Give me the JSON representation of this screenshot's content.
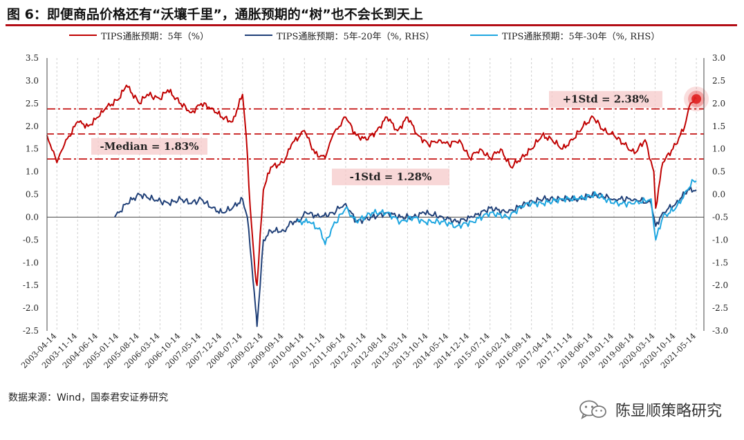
{
  "title": "图 6：即便商品价格还有“沃壤千里”，通胀预期的“树”也不会长到天上",
  "source": "数据来源：Wind，国泰君安证券研究",
  "watermark": {
    "text": "陈显顺策略研究",
    "icon": "wechat-icon"
  },
  "colors": {
    "series_5y": "#c00000",
    "series_5y20y": "#1f3f77",
    "series_5y30y": "#1ea6e0",
    "accent_title_rule": "#b30d16",
    "band_fill": "#f6c9c9",
    "highlight_dot": "#e02020"
  },
  "chart_data": {
    "type": "line",
    "series": [
      {
        "name": "TIPS通胀预期：5年（%）",
        "axis": "left",
        "x": [
          "2003-01-02",
          "2003-04-14",
          "2003-07-01",
          "2003-11-14",
          "2004-03-01",
          "2004-06-14",
          "2004-09-01",
          "2005-01-14",
          "2005-04-01",
          "2005-08-14",
          "2005-11-01",
          "2006-03-14",
          "2006-06-01",
          "2006-10-14",
          "2007-02-01",
          "2007-05-14",
          "2007-09-01",
          "2007-12-14",
          "2008-04-01",
          "2008-07-14",
          "2008-08-20",
          "2008-10-01",
          "2008-11-20",
          "2008-12-10",
          "2009-02-14",
          "2009-05-01",
          "2009-09-14",
          "2009-12-01",
          "2010-04-14",
          "2010-08-01",
          "2010-11-14",
          "2011-02-01",
          "2011-06-14",
          "2011-10-01",
          "2012-01-14",
          "2012-05-01",
          "2012-08-14",
          "2012-12-01",
          "2013-03-14",
          "2013-07-01",
          "2013-10-14",
          "2014-02-01",
          "2014-05-14",
          "2014-09-01",
          "2014-12-14",
          "2015-04-01",
          "2015-07-14",
          "2015-11-01",
          "2016-02-14",
          "2016-06-01",
          "2016-09-14",
          "2017-01-01",
          "2017-04-14",
          "2017-08-01",
          "2017-11-14",
          "2018-03-01",
          "2018-06-14",
          "2018-10-01",
          "2019-01-14",
          "2019-05-01",
          "2019-08-14",
          "2019-12-01",
          "2020-03-01",
          "2020-03-20",
          "2020-06-01",
          "2020-10-14",
          "2021-01-14",
          "2021-03-14",
          "2021-05-14"
        ],
        "y": [
          1.8,
          1.2,
          1.6,
          2.1,
          2.0,
          2.2,
          2.4,
          2.6,
          2.9,
          2.5,
          2.7,
          2.6,
          2.8,
          2.5,
          2.3,
          2.5,
          2.4,
          2.2,
          2.1,
          2.7,
          1.8,
          0.2,
          -1.2,
          -1.5,
          0.6,
          1.1,
          1.2,
          1.6,
          1.9,
          1.4,
          1.3,
          1.8,
          2.2,
          1.8,
          1.7,
          1.9,
          2.2,
          1.9,
          2.2,
          1.8,
          1.6,
          1.7,
          1.6,
          1.7,
          1.3,
          1.5,
          1.3,
          1.5,
          1.1,
          1.3,
          1.5,
          1.8,
          1.7,
          1.5,
          1.7,
          2.0,
          2.2,
          1.9,
          1.8,
          1.6,
          1.4,
          1.7,
          1.0,
          0.2,
          1.2,
          1.6,
          2.0,
          2.5,
          2.6
        ]
      },
      {
        "name": "TIPS通胀预期：5年-20年（%, RHS）",
        "axis": "right",
        "x": [
          "2004-12-01",
          "2005-01-14",
          "2005-04-01",
          "2005-08-14",
          "2006-01-01",
          "2006-06-14",
          "2006-10-14",
          "2007-02-01",
          "2007-05-14",
          "2007-09-01",
          "2007-12-14",
          "2008-04-01",
          "2008-07-14",
          "2008-09-01",
          "2008-10-15",
          "2008-11-25",
          "2008-12-10",
          "2009-02-14",
          "2009-05-01",
          "2009-09-14",
          "2009-12-01",
          "2010-02-14",
          "2010-05-01",
          "2010-10-01",
          "2011-02-01",
          "2011-06-14",
          "2011-10-01",
          "2012-03-14",
          "2012-08-14",
          "2013-01-01",
          "2013-05-14",
          "2013-09-01",
          "2014-03-14",
          "2014-08-01",
          "2015-01-14",
          "2015-07-14",
          "2016-01-14",
          "2016-07-14",
          "2017-01-14",
          "2017-07-14",
          "2018-01-14",
          "2018-07-14",
          "2019-01-14",
          "2019-08-14",
          "2020-02-01",
          "2020-03-20",
          "2020-06-01",
          "2020-10-14",
          "2021-02-14",
          "2021-05-14"
        ],
        "y": [
          -0.5,
          -0.4,
          -0.2,
          0.0,
          -0.1,
          -0.2,
          -0.1,
          -0.2,
          -0.1,
          -0.3,
          -0.4,
          -0.3,
          -0.1,
          -0.5,
          -1.5,
          -2.5,
          -2.9,
          -1.0,
          -0.8,
          -0.8,
          -0.6,
          -0.6,
          -0.4,
          -0.5,
          -0.4,
          -0.2,
          -0.6,
          -0.5,
          -0.4,
          -0.5,
          -0.5,
          -0.4,
          -0.5,
          -0.6,
          -0.5,
          -0.3,
          -0.4,
          -0.2,
          -0.1,
          -0.1,
          -0.1,
          0.0,
          -0.1,
          -0.1,
          -0.2,
          -0.7,
          -0.4,
          -0.2,
          0.1,
          0.1
        ]
      },
      {
        "name": "TIPS通胀预期：5年-30年（%, RHS）",
        "axis": "right",
        "x": [
          "2010-02-01",
          "2010-06-01",
          "2010-10-01",
          "2010-11-14",
          "2011-02-01",
          "2011-06-14",
          "2011-10-01",
          "2012-03-14",
          "2012-08-14",
          "2013-01-01",
          "2013-05-14",
          "2013-09-01",
          "2014-03-14",
          "2014-08-01",
          "2015-01-14",
          "2015-07-14",
          "2016-01-14",
          "2016-07-14",
          "2017-01-14",
          "2017-07-14",
          "2018-01-14",
          "2018-07-14",
          "2019-01-14",
          "2019-08-14",
          "2020-02-01",
          "2020-03-20",
          "2020-06-01",
          "2020-10-14",
          "2021-02-14",
          "2021-04-14",
          "2021-05-14"
        ],
        "y": [
          -0.6,
          -0.6,
          -0.8,
          -1.1,
          -0.7,
          -0.3,
          -0.6,
          -0.4,
          -0.4,
          -0.6,
          -0.5,
          -0.6,
          -0.6,
          -0.7,
          -0.6,
          -0.4,
          -0.5,
          -0.2,
          -0.2,
          -0.1,
          -0.1,
          0.0,
          -0.2,
          -0.2,
          -0.1,
          -1.0,
          -0.5,
          -0.3,
          0.1,
          0.3,
          0.3
        ]
      }
    ],
    "reference_lines": [
      {
        "label": "+1Std = 2.38%",
        "value": 2.38,
        "style": "dash-dot"
      },
      {
        "label": "-Median = 1.83%",
        "value": 1.83,
        "style": "dash"
      },
      {
        "label": "-1Std = 1.28%",
        "value": 1.28,
        "style": "dash-dot"
      }
    ],
    "highlight_point": {
      "x": "2021-05-14",
      "y": 2.6
    },
    "x_tick_labels": [
      "2003-04-14",
      "2003-11-14",
      "2004-06-14",
      "2005-01-14",
      "2005-08-14",
      "2006-03-14",
      "2006-10-14",
      "2007-05-14",
      "2007-12-14",
      "2008-07-14",
      "2009-02-14",
      "2009-09-14",
      "2010-04-14",
      "2010-11-14",
      "2011-06-14",
      "2012-01-14",
      "2012-08-14",
      "2013-03-14",
      "2013-10-14",
      "2014-05-14",
      "2014-12-14",
      "2015-07-14",
      "2016-02-14",
      "2016-09-14",
      "2017-04-14",
      "2017-11-14",
      "2018-06-14",
      "2019-01-14",
      "2019-08-14",
      "2020-03-14",
      "2020-10-14",
      "2021-05-14"
    ],
    "x_range": [
      "2003-01-02",
      "2021-07-31"
    ],
    "y_left": {
      "ylim": [
        -2.5,
        3.5
      ],
      "ticks": [
        "-2.5",
        "-2.0",
        "-1.5",
        "-1.0",
        "-0.5",
        "0.0",
        "0.5",
        "1.0",
        "1.5",
        "2.0",
        "2.5",
        "3.0",
        "3.5"
      ]
    },
    "y_right": {
      "ylim": [
        -3.0,
        3.0
      ],
      "ticks": [
        "-3.0",
        "-2.5",
        "-2.0",
        "-1.5",
        "-1.0",
        "-0.5",
        "0.0",
        "0.5",
        "1.0",
        "1.5",
        "2.0",
        "2.5",
        "3.0"
      ]
    },
    "grid": "vertical-dashed",
    "legend_position": "top"
  }
}
